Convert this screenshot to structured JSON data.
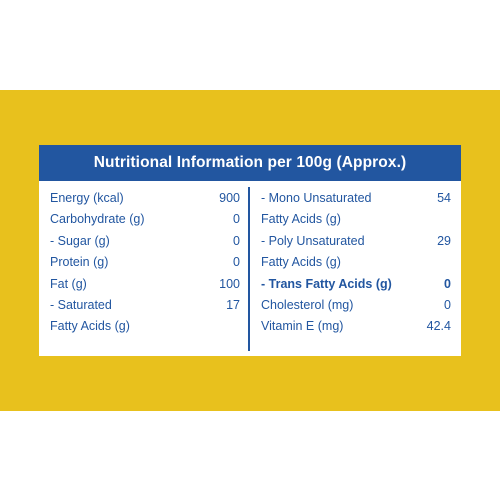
{
  "colors": {
    "background": "#ffffff",
    "band": "#e8c11d",
    "header": "#2256a0",
    "text": "#2256a0"
  },
  "panel": {
    "title": "Nutritional Information per 100g (Approx.)"
  },
  "left_rows": [
    {
      "label": "Energy (kcal)",
      "value": "900"
    },
    {
      "label": "Carbohydrate (g)",
      "value": "0"
    },
    {
      "label": "- Sugar (g)",
      "value": "0"
    },
    {
      "label": "Protein (g)",
      "value": "0"
    },
    {
      "label": "Fat (g)",
      "value": "100"
    },
    {
      "label": "- Saturated",
      "value": "17"
    },
    {
      "label": "Fatty Acids (g)",
      "value": ""
    }
  ],
  "right_rows": [
    {
      "label": "- Mono Unsaturated",
      "value": "54"
    },
    {
      "label": "Fatty Acids (g)",
      "value": ""
    },
    {
      "label": "- Poly Unsaturated",
      "value": "29"
    },
    {
      "label": "Fatty Acids (g)",
      "value": ""
    },
    {
      "label": "- Trans Fatty Acids (g)",
      "value": "0"
    },
    {
      "label": "Cholesterol (mg)",
      "value": "0"
    },
    {
      "label": "Vitamin E (mg)",
      "value": "42.4"
    }
  ]
}
